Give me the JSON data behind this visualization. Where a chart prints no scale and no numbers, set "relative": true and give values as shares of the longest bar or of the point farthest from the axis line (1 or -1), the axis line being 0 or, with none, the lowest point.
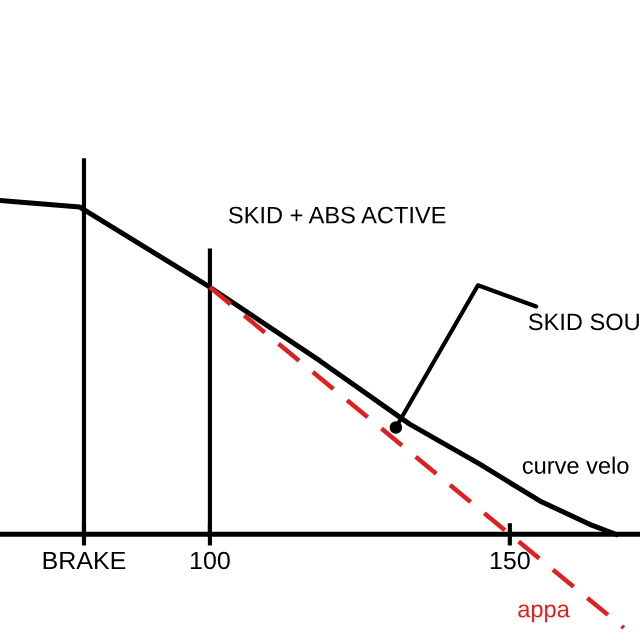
{
  "chart_data": {
    "type": "line",
    "relative": true,
    "xlim": [
      65,
      171.7
    ],
    "xticks": [
      {
        "value": 79,
        "label": "BRAKE"
      },
      100,
      150
    ],
    "series": [
      {
        "name": "curve velo",
        "color": "#000000",
        "line_style": "solid",
        "x": [
          65,
          78.3,
          100,
          118.3,
          133.3,
          145,
          155,
          163.3,
          167.7
        ],
        "values": [
          1.0,
          0.98,
          0.74,
          0.52,
          0.33,
          0.21,
          0.1,
          0.03,
          0.0
        ]
      },
      {
        "name": "appa",
        "color": "#e02020",
        "line_style": "dashed",
        "x": [
          100,
          150,
          169
        ],
        "values": [
          0.74,
          0.0,
          -0.28
        ]
      }
    ],
    "ref_lines": [
      {
        "axis": "x",
        "value": 79,
        "label": null
      },
      {
        "axis": "x",
        "value": 100,
        "label": "SKID + ABS ACTIVE"
      }
    ],
    "annotations": [
      {
        "text": "SKID SOU",
        "x": 131,
        "y": 0.32
      }
    ],
    "grid": false,
    "legend": false,
    "marker": "none"
  }
}
